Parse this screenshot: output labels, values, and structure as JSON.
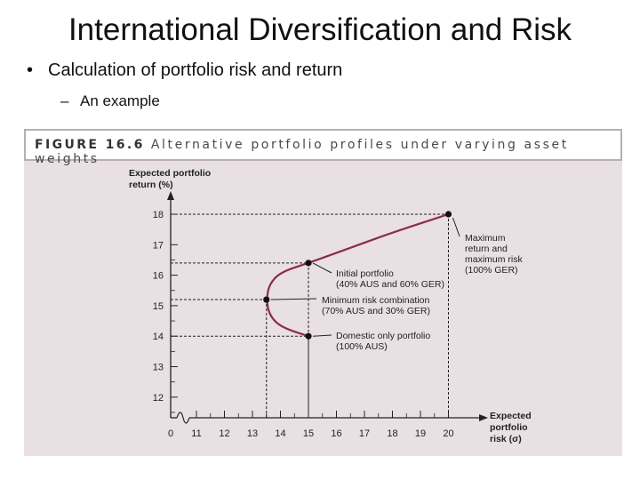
{
  "slide": {
    "title": "International Diversification and Risk",
    "bullet": "Calculation of portfolio risk and return",
    "sub_bullet": "An example",
    "bullet_symbol": "•",
    "sub_symbol": "–"
  },
  "figure": {
    "caption_label": "FIGURE 16.6",
    "caption_text": "Alternative portfolio profiles under varying asset weights"
  },
  "chart_data": {
    "type": "line",
    "title": "FIGURE 16.6 Alternative portfolio profiles under varying asset weights",
    "ylabel_lines": [
      "Expected portfolio",
      "return (%)"
    ],
    "xlabel_lines": [
      "Expected",
      "portfolio",
      "risk (σ)"
    ],
    "x_ticks": [
      "0",
      "11",
      "12",
      "13",
      "14",
      "15",
      "16",
      "17",
      "18",
      "19",
      "20"
    ],
    "y_ticks": [
      "12",
      "13",
      "14",
      "15",
      "16",
      "17",
      "18"
    ],
    "xlim": [
      10,
      20
    ],
    "ylim": [
      11.5,
      18.5
    ],
    "x_axis_broken": true,
    "series": [
      {
        "x": [
          15.0,
          14.0,
          13.6,
          13.5,
          13.6,
          14.0,
          15.0,
          16.5,
          18.0,
          20.0
        ],
        "y": [
          14.0,
          14.3,
          14.7,
          15.2,
          15.7,
          16.1,
          16.4,
          16.9,
          17.4,
          18.0
        ]
      }
    ],
    "points": [
      {
        "x": 20.0,
        "y": 18.0,
        "label_lines": [
          "Maximum",
          "return and",
          "maximum risk",
          "(100% GER)"
        ]
      },
      {
        "x": 15.0,
        "y": 16.4,
        "label_lines": [
          "Initial portfolio",
          "(40% AUS and 60% GER)"
        ]
      },
      {
        "x": 13.5,
        "y": 15.2,
        "label_lines": [
          "Minimum risk combination",
          "(70% AUS and 30% GER)"
        ]
      },
      {
        "x": 15.0,
        "y": 14.0,
        "label_lines": [
          "Domestic only portfolio",
          "(100% AUS)"
        ]
      }
    ],
    "colors": {
      "curve": "#8a2a55",
      "line": "#222222",
      "panel": "#e8e0e2"
    }
  }
}
